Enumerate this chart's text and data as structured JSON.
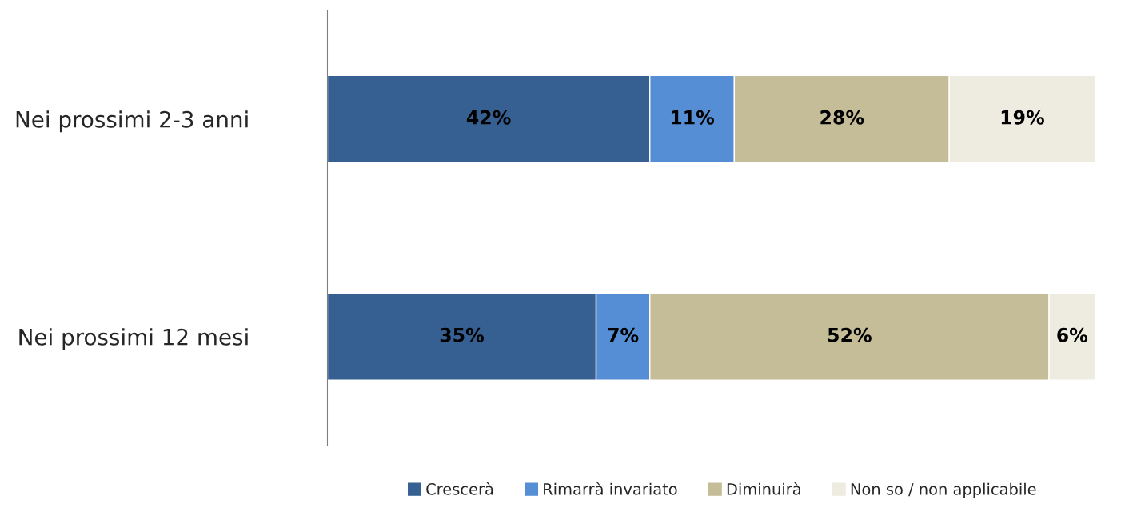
{
  "chart_data": {
    "type": "bar",
    "orientation": "horizontal",
    "stacked": true,
    "categories": [
      "Nei prossimi 2-3 anni",
      "Nei prossimi 12 mesi"
    ],
    "series": [
      {
        "name": "Crescerà",
        "color": "#376092",
        "values": [
          42,
          35
        ],
        "value_labels": [
          "42%",
          "35%"
        ]
      },
      {
        "name": "Rimarrà invariato",
        "color": "#558ed5",
        "values": [
          11,
          7
        ],
        "value_labels": [
          "11%",
          "7%"
        ]
      },
      {
        "name": "Diminuirà",
        "color": "#c4bd97",
        "values": [
          28,
          52
        ],
        "value_labels": [
          "28%",
          "52%"
        ]
      },
      {
        "name": "Non so / non applicabile",
        "color": "#eeece1",
        "values": [
          19,
          6
        ],
        "value_labels": [
          "19%",
          "6%"
        ]
      }
    ],
    "xlim": [
      0,
      100
    ],
    "tick_labels": "y",
    "grid": false,
    "legend": "bottom"
  }
}
